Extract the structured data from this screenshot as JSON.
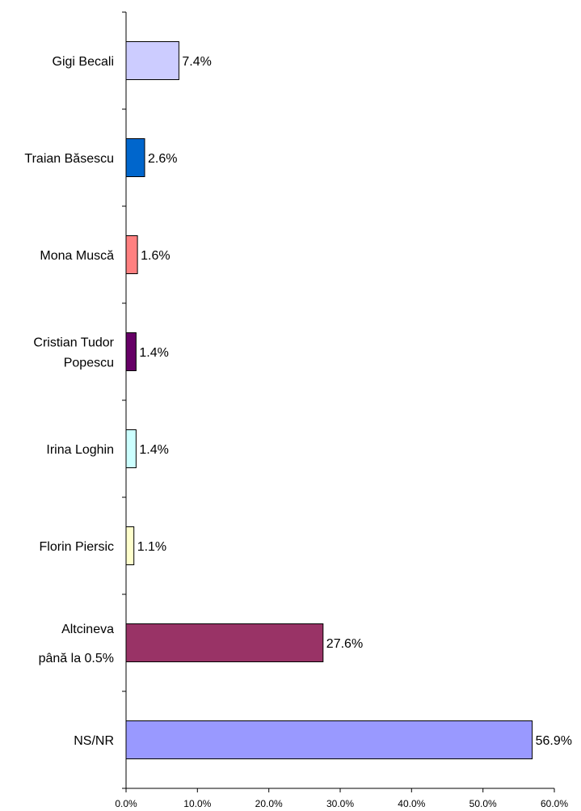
{
  "chart_data": {
    "type": "bar",
    "orientation": "horizontal",
    "categories": [
      [
        "Gigi Becali"
      ],
      [
        "Traian Băsescu"
      ],
      [
        "Mona Muscă"
      ],
      [
        "Cristian Tudor",
        "Popescu"
      ],
      [
        "Irina Loghin"
      ],
      [
        "Florin Piersic"
      ],
      [
        "Altcineva",
        "până la 0.5%"
      ],
      [
        "NS/NR"
      ]
    ],
    "values": [
      7.4,
      2.6,
      1.6,
      1.4,
      1.4,
      1.1,
      27.6,
      56.9
    ],
    "value_labels": [
      "7.4%",
      "2.6%",
      "1.6%",
      "1.4%",
      "1.4%",
      "1.1%",
      "27.6%",
      "56.9%"
    ],
    "colors": [
      "#CCCCFF",
      "#0066CC",
      "#FF8080",
      "#660066",
      "#CCFFFF",
      "#FFFFCC",
      "#993366",
      "#9999FF"
    ],
    "xlim": [
      0,
      60
    ],
    "xticks": [
      0,
      10,
      20,
      30,
      40,
      50,
      60
    ],
    "xtick_labels": [
      "0.0%",
      "10.0%",
      "20.0%",
      "30.0%",
      "40.0%",
      "50.0%",
      "60.0%"
    ],
    "grid": false,
    "legend": "none",
    "title": "",
    "xlabel": "",
    "ylabel": ""
  }
}
